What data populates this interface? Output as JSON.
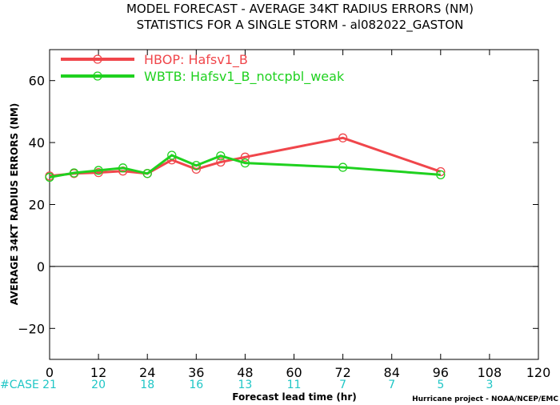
{
  "title_line1": "MODEL FORECAST - AVERAGE 34KT RADIUS ERRORS (NM)",
  "title_line2": "STATISTICS FOR A SINGLE STORM - al082022_GASTON",
  "credit": "Hurricane project - NOAA/NCEP/EMC",
  "case_label": "#CASE",
  "chart_data": {
    "type": "line",
    "xlabel": "Forecast lead time (hr)",
    "ylabel": "AVERAGE 34KT RADIUS ERRORS (NM)",
    "xlim": [
      0,
      120
    ],
    "ylim": [
      -30,
      70
    ],
    "xticks": [
      0,
      12,
      24,
      36,
      48,
      60,
      72,
      84,
      96,
      108,
      120
    ],
    "yticks": [
      -20,
      0,
      20,
      40,
      60
    ],
    "grid": false,
    "legend_position": "top-left",
    "zero_line": true,
    "series": [
      {
        "name": "HBOP: Hafsv1_B",
        "color": "#f0464b",
        "x": [
          0,
          6,
          12,
          18,
          24,
          30,
          36,
          42,
          48,
          72,
          96
        ],
        "values": [
          29.2,
          30.0,
          30.3,
          30.8,
          30.0,
          34.4,
          31.4,
          33.7,
          35.3,
          41.5,
          30.6
        ]
      },
      {
        "name": "WBTB: Hafsv1_B_notcpbl_weak",
        "color": "#1fd11f",
        "x": [
          0,
          6,
          12,
          18,
          24,
          30,
          36,
          42,
          48,
          72,
          96
        ],
        "values": [
          28.8,
          30.2,
          31.0,
          31.8,
          30.0,
          35.9,
          32.6,
          35.7,
          33.4,
          32.0,
          29.6
        ]
      }
    ],
    "case_counts": {
      "x": [
        0,
        12,
        24,
        36,
        48,
        60,
        72,
        84,
        96,
        108
      ],
      "values": [
        "21",
        "20",
        "18",
        "16",
        "13",
        "11",
        "7",
        "7",
        "5",
        "3"
      ]
    }
  }
}
